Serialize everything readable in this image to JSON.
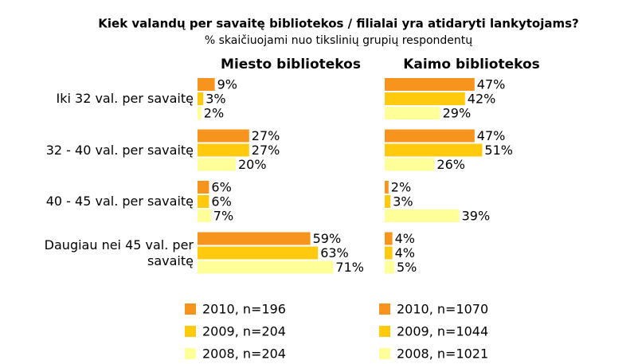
{
  "title": "Kiek valandų per savaitę bibliotekos / filialai yra atidaryti lankytojams?",
  "subtitle": "% skaičiuojami nuo tikslinių grupių respondentų",
  "categories": [
    "Iki 32 val. per savaitę",
    "32 - 40 val. per savaitę",
    "40 - 45 val. per savaitę",
    "Daugiau nei 45 val. per savaitę"
  ],
  "chart_data": [
    {
      "type": "bar",
      "orientation": "horizontal",
      "title": "Miesto bibliotekos",
      "xlim": [
        0,
        100
      ],
      "series": [
        {
          "name": "2010, n=196",
          "color": "#f7941d",
          "values": [
            9,
            27,
            6,
            59
          ],
          "value_labels": [
            "9%",
            "27%",
            "6%",
            "59%"
          ]
        },
        {
          "name": "2009, n=204",
          "color": "#ffc90e",
          "values": [
            3,
            27,
            6,
            63
          ],
          "value_labels": [
            "3%",
            "27%",
            "6%",
            "63%"
          ]
        },
        {
          "name": "2008, n=204",
          "color": "#ffff99",
          "values": [
            2,
            20,
            7,
            71
          ],
          "value_labels": [
            "2%",
            "20%",
            "7%",
            "71%"
          ]
        }
      ]
    },
    {
      "type": "bar",
      "orientation": "horizontal",
      "title": "Kaimo bibliotekos",
      "xlim": [
        0,
        100
      ],
      "series": [
        {
          "name": "2010, n=1070",
          "color": "#f7941d",
          "values": [
            47,
            47,
            2,
            4
          ],
          "value_labels": [
            "47%",
            "47%",
            "2%",
            "4%"
          ]
        },
        {
          "name": "2009, n=1044",
          "color": "#ffc90e",
          "values": [
            42,
            51,
            3,
            4
          ],
          "value_labels": [
            "42%",
            "51%",
            "3%",
            "4%"
          ]
        },
        {
          "name": "2008, n=1021",
          "color": "#ffff99",
          "values": [
            29,
            26,
            39,
            5
          ],
          "value_labels": [
            "29%",
            "26%",
            "39%",
            "5%"
          ]
        }
      ]
    }
  ]
}
